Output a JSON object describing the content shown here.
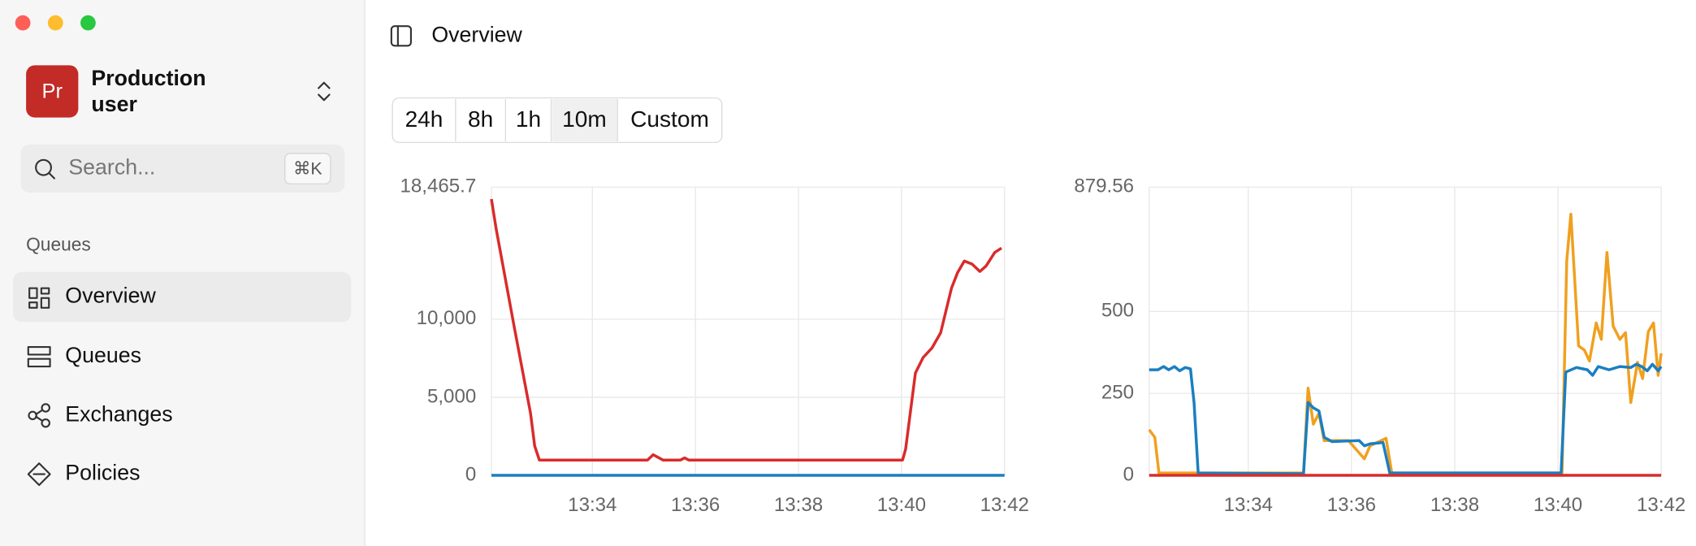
{
  "sidebar": {
    "account": {
      "avatar": "Pr",
      "name": "Production",
      "role": "user"
    },
    "search": {
      "placeholder": "Search...",
      "shortcut": "⌘K"
    },
    "section": "Queues",
    "nav": [
      "Overview",
      "Queues",
      "Exchanges",
      "Policies"
    ],
    "selected": 0
  },
  "header": {
    "title": "Overview"
  },
  "time_ranges": {
    "options": [
      "24h",
      "8h",
      "1h",
      "10m",
      "Custom"
    ],
    "selected": 3
  },
  "chart_data": [
    {
      "type": "line",
      "grid": true,
      "xlim": [
        812.04,
        822
      ],
      "xticks": [
        {
          "value": 814,
          "label": "13:34"
        },
        {
          "value": 816,
          "label": "13:36"
        },
        {
          "value": 818,
          "label": "13:38"
        },
        {
          "value": 820,
          "label": "13:40"
        },
        {
          "value": 822,
          "label": "13:42"
        }
      ],
      "ylim": [
        0,
        18465.7
      ],
      "yticks": [
        0,
        {
          "value": 5000,
          "label": "5,000"
        },
        {
          "value": 10000,
          "label": "10,000"
        },
        {
          "value": 18465.7,
          "label": "18,465.7"
        }
      ],
      "series": [
        {
          "color": "#1a7fc1",
          "x": [
            812.04,
            822
          ],
          "values": [
            0,
            0
          ]
        },
        {
          "color": "#d92b2b",
          "x": [
            812.04,
            812.13,
            812.48,
            812.8,
            812.88,
            812.97,
            815.07,
            815.18,
            815.37,
            815.71,
            815.79,
            815.87,
            820.02,
            820.08,
            820.27,
            820.42,
            820.59,
            820.76,
            820.97,
            821.09,
            821.22,
            821.37,
            821.52,
            821.64,
            821.81,
            821.94
          ],
          "values": [
            17700,
            15820,
            9540,
            3970,
            1880,
            975,
            975,
            1320,
            975,
            975,
            1115,
            975,
            975,
            1670,
            6550,
            7550,
            8150,
            9130,
            11990,
            13000,
            13730,
            13530,
            13060,
            13400,
            14280,
            14560
          ]
        }
      ]
    },
    {
      "type": "line",
      "grid": true,
      "xlim": [
        812.08,
        822
      ],
      "xticks": [
        {
          "value": 814,
          "label": "13:34"
        },
        {
          "value": 816,
          "label": "13:36"
        },
        {
          "value": 818,
          "label": "13:38"
        },
        {
          "value": 820,
          "label": "13:40"
        },
        {
          "value": 822,
          "label": "13:42"
        }
      ],
      "ylim": [
        0,
        879.56
      ],
      "yticks": [
        0,
        250,
        500,
        879.56
      ],
      "series": [
        {
          "color": "#f0a020",
          "x": [
            812.08,
            812.19,
            812.27,
            815.07,
            815.16,
            815.26,
            815.37,
            815.47,
            815.94,
            816.25,
            816.36,
            816.67,
            816.78,
            820.08,
            820.17,
            820.25,
            820.4,
            820.51,
            820.61,
            820.74,
            820.84,
            820.95,
            821.07,
            821.2,
            821.31,
            821.41,
            821.54,
            821.64,
            821.75,
            821.85,
            821.94,
            822
          ],
          "values": [
            139,
            116,
            7,
            7,
            266,
            156,
            189,
            106,
            106,
            50,
            90,
            113,
            7,
            7,
            654,
            797,
            395,
            382,
            349,
            465,
            415,
            680,
            455,
            415,
            435,
            222,
            345,
            295,
            438,
            465,
            305,
            372
          ]
        },
        {
          "color": "#1a7fc1",
          "x": [
            812.08,
            812.25,
            812.36,
            812.46,
            812.57,
            812.67,
            812.78,
            812.88,
            812.95,
            813.03,
            815.07,
            815.16,
            815.26,
            815.37,
            815.47,
            815.62,
            816.15,
            816.25,
            816.36,
            816.61,
            816.74,
            820.06,
            820.15,
            820.36,
            820.57,
            820.67,
            820.78,
            820.99,
            821.2,
            821.41,
            821.52,
            821.62,
            821.73,
            821.83,
            821.94,
            822
          ],
          "values": [
            322,
            322,
            332,
            322,
            332,
            319,
            329,
            325,
            222,
            7,
            5,
            222,
            206,
            196,
            116,
            103,
            106,
            90,
            96,
            100,
            7,
            7,
            315,
            329,
            322,
            305,
            332,
            322,
            332,
            329,
            339,
            332,
            319,
            339,
            319,
            332
          ]
        },
        {
          "color": "#d92b2b",
          "x": [
            812.08,
            822
          ],
          "values": [
            0,
            0
          ]
        }
      ]
    }
  ]
}
